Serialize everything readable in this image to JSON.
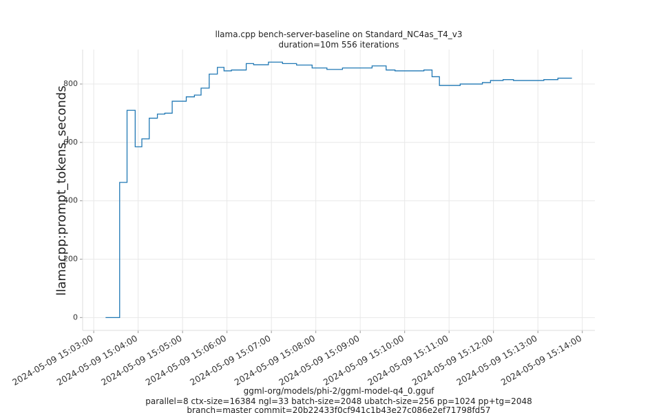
{
  "chart_data": {
    "type": "line",
    "title": "llama.cpp bench-server-baseline on Standard_NC4as_T4_v3",
    "subtitle": "duration=10m 556 iterations",
    "y_label": "llamacpp:prompt_tokens_seconds",
    "footer": [
      "ggml-org/models/phi-2/ggml-model-q4_0.gguf",
      "parallel=8 ctx-size=16384 ngl=33 batch-size=2048 ubatch-size=256 pp=1024 pp+tg=2048",
      "branch=master commit=20b22433f0cf941c1b43e27c086e2ef71798fd57"
    ],
    "grid": true,
    "xlim": [
      "2024-05-09 15:02:45",
      "2024-05-09 15:14:17"
    ],
    "xticks": [
      "2024-05-09 15:03:00",
      "2024-05-09 15:04:00",
      "2024-05-09 15:05:00",
      "2024-05-09 15:06:00",
      "2024-05-09 15:07:00",
      "2024-05-09 15:08:00",
      "2024-05-09 15:09:00",
      "2024-05-09 15:10:00",
      "2024-05-09 15:11:00",
      "2024-05-09 15:12:00",
      "2024-05-09 15:13:00",
      "2024-05-09 15:14:00"
    ],
    "ylim": [
      -44,
      918
    ],
    "yticks": [
      0,
      200,
      400,
      600,
      800
    ],
    "x": [
      "2024-05-09 15:03:16",
      "2024-05-09 15:03:35",
      "2024-05-09 15:03:35",
      "2024-05-09 15:03:45",
      "2024-05-09 15:03:45",
      "2024-05-09 15:03:56",
      "2024-05-09 15:03:56",
      "2024-05-09 15:04:05",
      "2024-05-09 15:04:05",
      "2024-05-09 15:04:15",
      "2024-05-09 15:04:15",
      "2024-05-09 15:04:26",
      "2024-05-09 15:04:26",
      "2024-05-09 15:04:36",
      "2024-05-09 15:04:36",
      "2024-05-09 15:04:46",
      "2024-05-09 15:04:46",
      "2024-05-09 15:05:05",
      "2024-05-09 15:05:05",
      "2024-05-09 15:05:16",
      "2024-05-09 15:05:16",
      "2024-05-09 15:05:25",
      "2024-05-09 15:05:25",
      "2024-05-09 15:05:36",
      "2024-05-09 15:05:36",
      "2024-05-09 15:05:47",
      "2024-05-09 15:05:47",
      "2024-05-09 15:05:56",
      "2024-05-09 15:05:56",
      "2024-05-09 15:06:06",
      "2024-05-09 15:06:06",
      "2024-05-09 15:06:26",
      "2024-05-09 15:06:26",
      "2024-05-09 15:06:36",
      "2024-05-09 15:06:36",
      "2024-05-09 15:06:56",
      "2024-05-09 15:06:56",
      "2024-05-09 15:07:15",
      "2024-05-09 15:07:15",
      "2024-05-09 15:07:34",
      "2024-05-09 15:07:34",
      "2024-05-09 15:07:55",
      "2024-05-09 15:07:55",
      "2024-05-09 15:08:15",
      "2024-05-09 15:08:15",
      "2024-05-09 15:08:36",
      "2024-05-09 15:08:36",
      "2024-05-09 15:09:16",
      "2024-05-09 15:09:16",
      "2024-05-09 15:09:35",
      "2024-05-09 15:09:35",
      "2024-05-09 15:09:47",
      "2024-05-09 15:09:47",
      "2024-05-09 15:10:26",
      "2024-05-09 15:10:26",
      "2024-05-09 15:10:37",
      "2024-05-09 15:10:37",
      "2024-05-09 15:10:47",
      "2024-05-09 15:10:47",
      "2024-05-09 15:11:15",
      "2024-05-09 15:11:15",
      "2024-05-09 15:11:45",
      "2024-05-09 15:11:45",
      "2024-05-09 15:11:56",
      "2024-05-09 15:11:56",
      "2024-05-09 15:12:13",
      "2024-05-09 15:12:13",
      "2024-05-09 15:12:27",
      "2024-05-09 15:12:27",
      "2024-05-09 15:13:08",
      "2024-05-09 15:13:08",
      "2024-05-09 15:13:27",
      "2024-05-09 15:13:27",
      "2024-05-09 15:13:46"
    ],
    "series": [
      {
        "color": "#1f77b4",
        "values": [
          0,
          0,
          463,
          463,
          710,
          710,
          585,
          585,
          612,
          612,
          683,
          683,
          697,
          697,
          700,
          700,
          741,
          741,
          756,
          756,
          762,
          762,
          786,
          786,
          834,
          834,
          857,
          857,
          845,
          845,
          848,
          848,
          870,
          870,
          866,
          866,
          875,
          875,
          870,
          870,
          865,
          865,
          855,
          855,
          850,
          850,
          855,
          855,
          862,
          862,
          848,
          848,
          845,
          845,
          848,
          848,
          825,
          825,
          795,
          795,
          800,
          800,
          805,
          805,
          812,
          812,
          815,
          815,
          812,
          812,
          815,
          815,
          820,
          820
        ]
      }
    ]
  }
}
